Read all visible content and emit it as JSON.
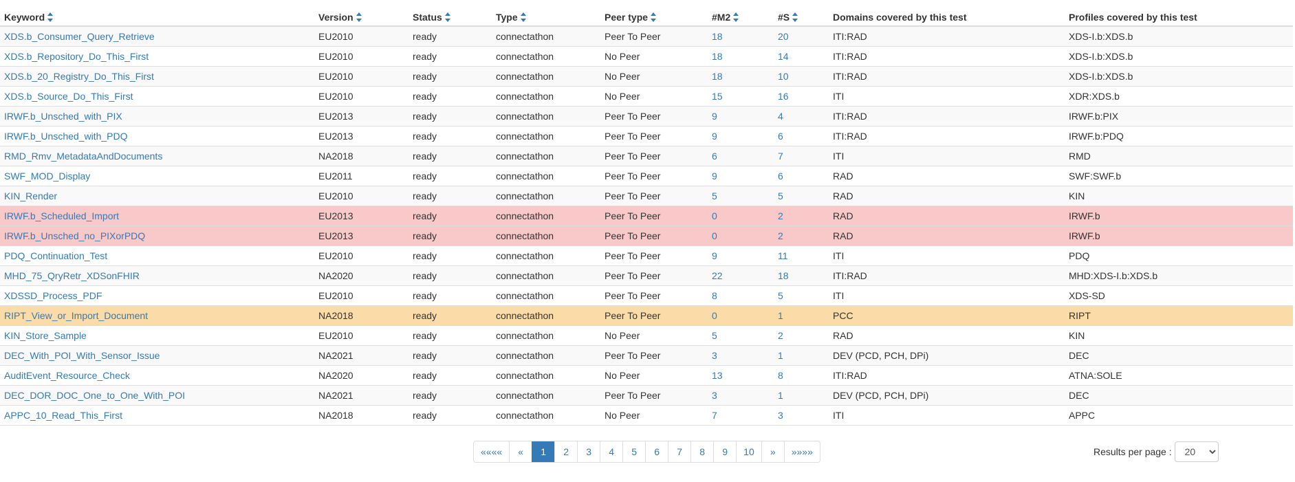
{
  "table": {
    "headers": {
      "keyword": "Keyword",
      "version": "Version",
      "status": "Status",
      "type": "Type",
      "peer_type": "Peer type",
      "m2": "#M2",
      "s": "#S",
      "domains": "Domains covered by this test",
      "profiles": "Profiles covered by this test"
    },
    "sort_icon": "sort-up-down-icon",
    "rows": [
      {
        "keyword": "XDS.b_Consumer_Query_Retrieve",
        "version": "EU2010",
        "status": "ready",
        "type": "connectathon",
        "peer_type": "Peer To Peer",
        "m2": "18",
        "s": "20",
        "domains": "ITI:RAD",
        "profiles": "XDS-I.b:XDS.b",
        "highlight": ""
      },
      {
        "keyword": "XDS.b_Repository_Do_This_First",
        "version": "EU2010",
        "status": "ready",
        "type": "connectathon",
        "peer_type": "No Peer",
        "m2": "18",
        "s": "14",
        "domains": "ITI:RAD",
        "profiles": "XDS-I.b:XDS.b",
        "highlight": ""
      },
      {
        "keyword": "XDS.b_20_Registry_Do_This_First",
        "version": "EU2010",
        "status": "ready",
        "type": "connectathon",
        "peer_type": "No Peer",
        "m2": "18",
        "s": "10",
        "domains": "ITI:RAD",
        "profiles": "XDS-I.b:XDS.b",
        "highlight": ""
      },
      {
        "keyword": "XDS.b_Source_Do_This_First",
        "version": "EU2010",
        "status": "ready",
        "type": "connectathon",
        "peer_type": "No Peer",
        "m2": "15",
        "s": "16",
        "domains": "ITI",
        "profiles": "XDR:XDS.b",
        "highlight": ""
      },
      {
        "keyword": "IRWF.b_Unsched_with_PIX",
        "version": "EU2013",
        "status": "ready",
        "type": "connectathon",
        "peer_type": "Peer To Peer",
        "m2": "9",
        "s": "4",
        "domains": "ITI:RAD",
        "profiles": "IRWF.b:PIX",
        "highlight": ""
      },
      {
        "keyword": "IRWF.b_Unsched_with_PDQ",
        "version": "EU2013",
        "status": "ready",
        "type": "connectathon",
        "peer_type": "Peer To Peer",
        "m2": "9",
        "s": "6",
        "domains": "ITI:RAD",
        "profiles": "IRWF.b:PDQ",
        "highlight": ""
      },
      {
        "keyword": "RMD_Rmv_MetadataAndDocuments",
        "version": "NA2018",
        "status": "ready",
        "type": "connectathon",
        "peer_type": "Peer To Peer",
        "m2": "6",
        "s": "7",
        "domains": "ITI",
        "profiles": "RMD",
        "highlight": ""
      },
      {
        "keyword": "SWF_MOD_Display",
        "version": "EU2011",
        "status": "ready",
        "type": "connectathon",
        "peer_type": "Peer To Peer",
        "m2": "9",
        "s": "6",
        "domains": "RAD",
        "profiles": "SWF:SWF.b",
        "highlight": ""
      },
      {
        "keyword": "KIN_Render",
        "version": "EU2010",
        "status": "ready",
        "type": "connectathon",
        "peer_type": "Peer To Peer",
        "m2": "5",
        "s": "5",
        "domains": "RAD",
        "profiles": "KIN",
        "highlight": ""
      },
      {
        "keyword": "IRWF.b_Scheduled_Import",
        "version": "EU2013",
        "status": "ready",
        "type": "connectathon",
        "peer_type": "Peer To Peer",
        "m2": "0",
        "s": "2",
        "domains": "RAD",
        "profiles": "IRWF.b",
        "highlight": "error"
      },
      {
        "keyword": "IRWF.b_Unsched_no_PIXorPDQ",
        "version": "EU2013",
        "status": "ready",
        "type": "connectathon",
        "peer_type": "Peer To Peer",
        "m2": "0",
        "s": "2",
        "domains": "RAD",
        "profiles": "IRWF.b",
        "highlight": "error"
      },
      {
        "keyword": "PDQ_Continuation_Test",
        "version": "EU2010",
        "status": "ready",
        "type": "connectathon",
        "peer_type": "Peer To Peer",
        "m2": "9",
        "s": "11",
        "domains": "ITI",
        "profiles": "PDQ",
        "highlight": ""
      },
      {
        "keyword": "MHD_75_QryRetr_XDSonFHIR",
        "version": "NA2020",
        "status": "ready",
        "type": "connectathon",
        "peer_type": "Peer To Peer",
        "m2": "22",
        "s": "18",
        "domains": "ITI:RAD",
        "profiles": "MHD:XDS-I.b:XDS.b",
        "highlight": ""
      },
      {
        "keyword": "XDSSD_Process_PDF",
        "version": "EU2010",
        "status": "ready",
        "type": "connectathon",
        "peer_type": "Peer To Peer",
        "m2": "8",
        "s": "5",
        "domains": "ITI",
        "profiles": "XDS-SD",
        "highlight": ""
      },
      {
        "keyword": "RIPT_View_or_Import_Document",
        "version": "NA2018",
        "status": "ready",
        "type": "connectathon",
        "peer_type": "Peer To Peer",
        "m2": "0",
        "s": "1",
        "domains": "PCC",
        "profiles": "RIPT",
        "highlight": "warning"
      },
      {
        "keyword": "KIN_Store_Sample",
        "version": "EU2010",
        "status": "ready",
        "type": "connectathon",
        "peer_type": "No Peer",
        "m2": "5",
        "s": "2",
        "domains": "RAD",
        "profiles": "KIN",
        "highlight": ""
      },
      {
        "keyword": "DEC_With_POI_With_Sensor_Issue",
        "version": "NA2021",
        "status": "ready",
        "type": "connectathon",
        "peer_type": "Peer To Peer",
        "m2": "3",
        "s": "1",
        "domains": "DEV (PCD, PCH, DPi)",
        "profiles": "DEC",
        "highlight": ""
      },
      {
        "keyword": "AuditEvent_Resource_Check",
        "version": "NA2020",
        "status": "ready",
        "type": "connectathon",
        "peer_type": "No Peer",
        "m2": "13",
        "s": "8",
        "domains": "ITI:RAD",
        "profiles": "ATNA:SOLE",
        "highlight": ""
      },
      {
        "keyword": "DEC_DOR_DOC_One_to_One_With_POI",
        "version": "NA2021",
        "status": "ready",
        "type": "connectathon",
        "peer_type": "Peer To Peer",
        "m2": "3",
        "s": "1",
        "domains": "DEV (PCD, PCH, DPi)",
        "profiles": "DEC",
        "highlight": ""
      },
      {
        "keyword": "APPC_10_Read_This_First",
        "version": "NA2018",
        "status": "ready",
        "type": "connectathon",
        "peer_type": "No Peer",
        "m2": "7",
        "s": "3",
        "domains": "ITI",
        "profiles": "APPC",
        "highlight": ""
      }
    ]
  },
  "pagination": {
    "first": "««««",
    "prev": "«",
    "pages": [
      "1",
      "2",
      "3",
      "4",
      "5",
      "6",
      "7",
      "8",
      "9",
      "10"
    ],
    "active_page": "1",
    "next": "»",
    "last": "»»»»"
  },
  "results_per_page": {
    "label": "Results per page :",
    "value": "20"
  },
  "colors": {
    "link": "#337ab7",
    "row_error": "#f9c9c9",
    "row_warning": "#fbdca8",
    "active_page": "#337ab7"
  }
}
